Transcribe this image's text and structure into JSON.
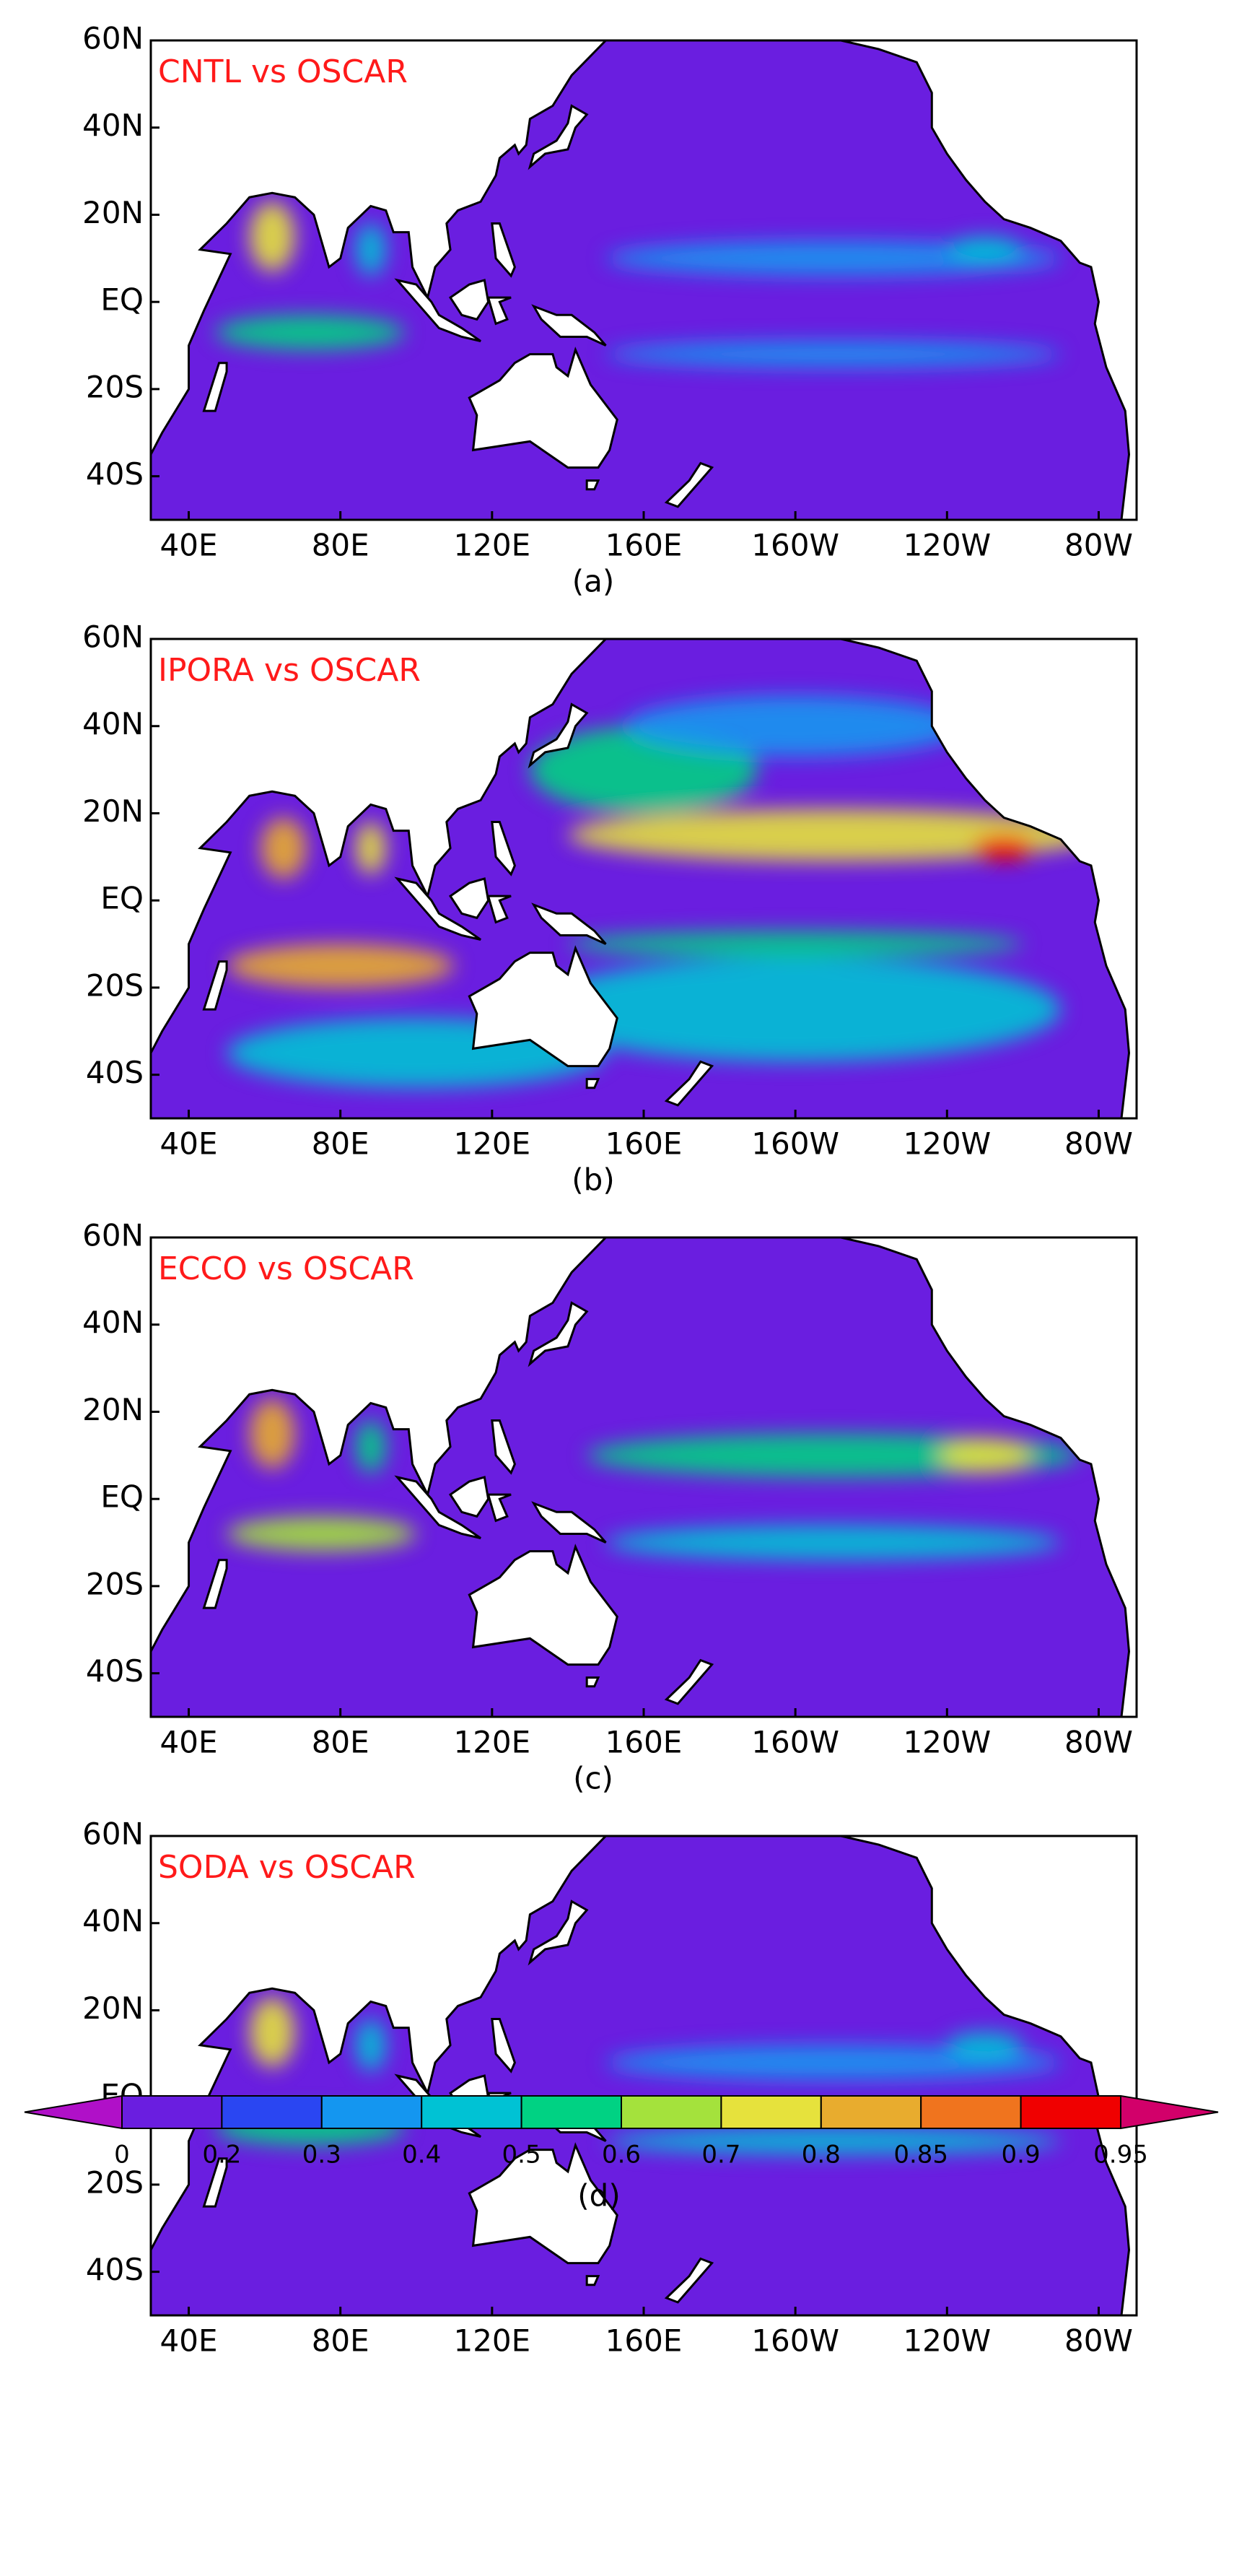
{
  "panels": [
    {
      "title": "CNTL vs OSCAR",
      "caption": "(a)"
    },
    {
      "title": "IPORA vs OSCAR",
      "caption": "(b)"
    },
    {
      "title": "ECCO vs OSCAR",
      "caption": "(c)"
    },
    {
      "title": "SODA vs OSCAR",
      "caption": ""
    }
  ],
  "lat_ticks": [
    "60N",
    "40N",
    "20N",
    "EQ",
    "20S",
    "40S"
  ],
  "lon_ticks": [
    "40E",
    "80E",
    "120E",
    "160E",
    "160W",
    "120W",
    "80W"
  ],
  "colorbar": {
    "levels": [
      0,
      0.2,
      0.3,
      0.4,
      0.5,
      0.6,
      0.7,
      0.8,
      0.85,
      0.9,
      0.95
    ],
    "colors": [
      "#b010c8",
      "#6a1ee0",
      "#2a46f2",
      "#1496f0",
      "#00c2d4",
      "#00d283",
      "#a4e23c",
      "#e6e23c",
      "#e8ac2e",
      "#f0741e",
      "#f00000",
      "#d2006a"
    ],
    "caption": "(d)"
  }
}
